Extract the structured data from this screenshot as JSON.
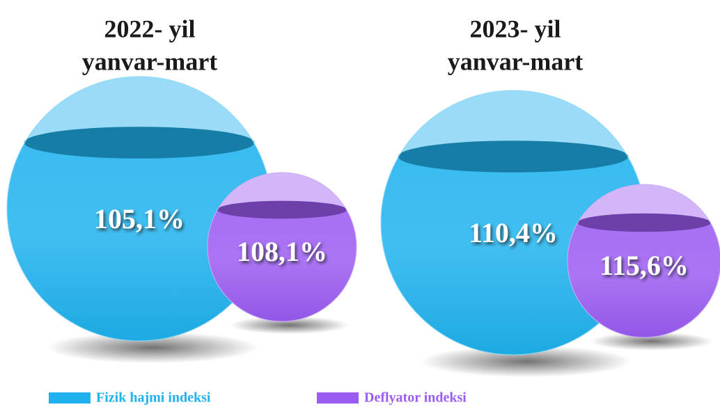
{
  "chart_data": {
    "type": "sphere",
    "categories": [
      "2022- yil",
      "2023- yil"
    ],
    "category_subtitles": [
      "yanvar-mart",
      "yanvar-mart"
    ],
    "series": [
      {
        "name": "Fizik hajmi indeksi",
        "color": "#1fb2ee",
        "values": [
          105.1,
          110.4
        ],
        "value_labels": [
          "105,1%",
          "110,4%"
        ]
      },
      {
        "name": "Deflyator indeksi",
        "color": "#9b5cf2",
        "values": [
          108.1,
          115.6
        ],
        "value_labels": [
          "108,1%",
          "115,6%"
        ]
      }
    ],
    "legend": "bottom"
  }
}
